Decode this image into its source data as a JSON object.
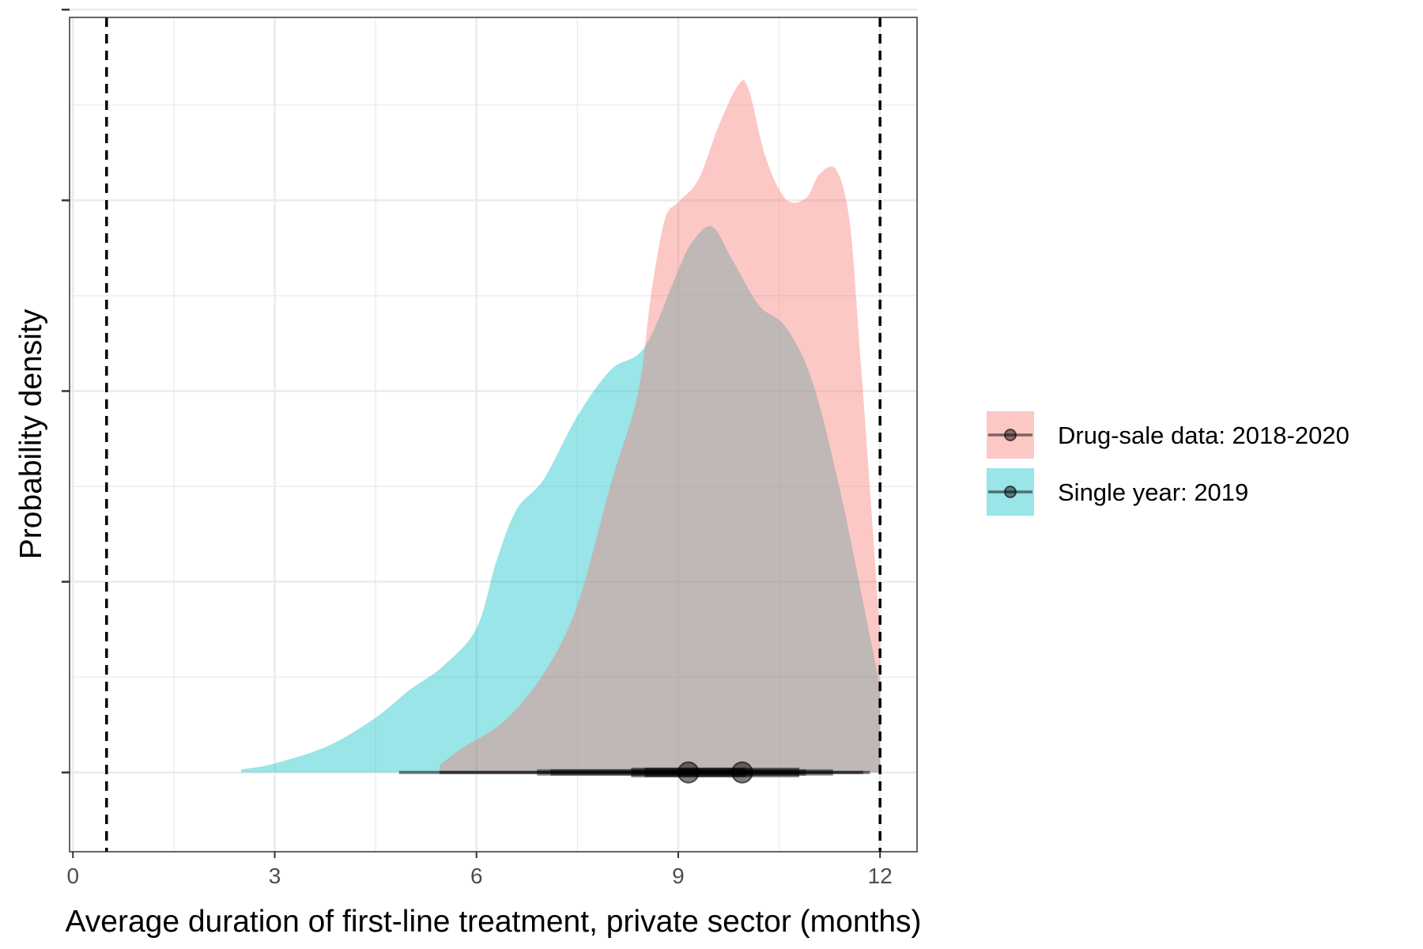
{
  "chart_data": {
    "type": "area",
    "xlabel": "Average duration of first-line treatment, private sector (months)",
    "ylabel": "Probability density",
    "xlim": [
      -0.05,
      12.55
    ],
    "ylim": [
      -0.0133,
      0.1267
    ],
    "x_ticks": [
      0,
      3,
      6,
      9,
      12
    ],
    "x_tick_labels": [
      "0",
      "3",
      "6",
      "9",
      "12"
    ],
    "y_ticks": [
      0,
      0.032,
      0.064,
      0.096,
      0.128
    ],
    "y_tick_labels_shown": false,
    "grid": true,
    "reference_lines": [
      0.5,
      12
    ],
    "legend_position": "right",
    "series": [
      {
        "name": "Drug-sale data: 2018-2020",
        "color": "#F8766D",
        "opacity": 0.4,
        "x": [
          5.45,
          5.8,
          6.4,
          7.0,
          7.5,
          8.0,
          8.4,
          8.6,
          8.8,
          9.0,
          9.3,
          9.6,
          9.9,
          10.05,
          10.3,
          10.6,
          10.9,
          11.1,
          11.35,
          11.55,
          11.7,
          11.85,
          12.0
        ],
        "y": [
          0.0012,
          0.0042,
          0.0085,
          0.0166,
          0.0281,
          0.0485,
          0.0636,
          0.0805,
          0.0928,
          0.0957,
          0.0995,
          0.1085,
          0.1155,
          0.1145,
          0.1032,
          0.0962,
          0.0964,
          0.1004,
          0.1011,
          0.0922,
          0.0708,
          0.0475,
          0.0233
        ]
      },
      {
        "name": "Single year: 2019",
        "color": "#00BFC4",
        "opacity": 0.4,
        "x": [
          2.5,
          3.0,
          3.8,
          4.5,
          5.0,
          5.5,
          6.0,
          6.3,
          6.6,
          7.0,
          7.5,
          8.0,
          8.5,
          9.0,
          9.2,
          9.5,
          9.8,
          10.2,
          10.6,
          11.0,
          11.4,
          11.8,
          12.0
        ],
        "y": [
          0.0005,
          0.0015,
          0.0045,
          0.0092,
          0.0138,
          0.0178,
          0.0242,
          0.0356,
          0.0442,
          0.0492,
          0.0598,
          0.0676,
          0.0714,
          0.0843,
          0.0889,
          0.0916,
          0.0861,
          0.0784,
          0.0747,
          0.0654,
          0.0476,
          0.0257,
          0.0145
        ]
      }
    ],
    "point_intervals": [
      {
        "series": "Drug-sale data: 2018-2020",
        "point": 9.95,
        "interval_66": [
          8.5,
          10.8
        ],
        "interval_95": [
          7.1,
          11.3
        ],
        "interval_99": [
          5.45,
          11.85
        ]
      },
      {
        "series": "Single year: 2019",
        "point": 9.15,
        "interval_66": [
          8.3,
          10.0
        ],
        "interval_95": [
          6.9,
          10.9
        ],
        "interval_99": [
          4.85,
          11.75
        ]
      }
    ]
  }
}
